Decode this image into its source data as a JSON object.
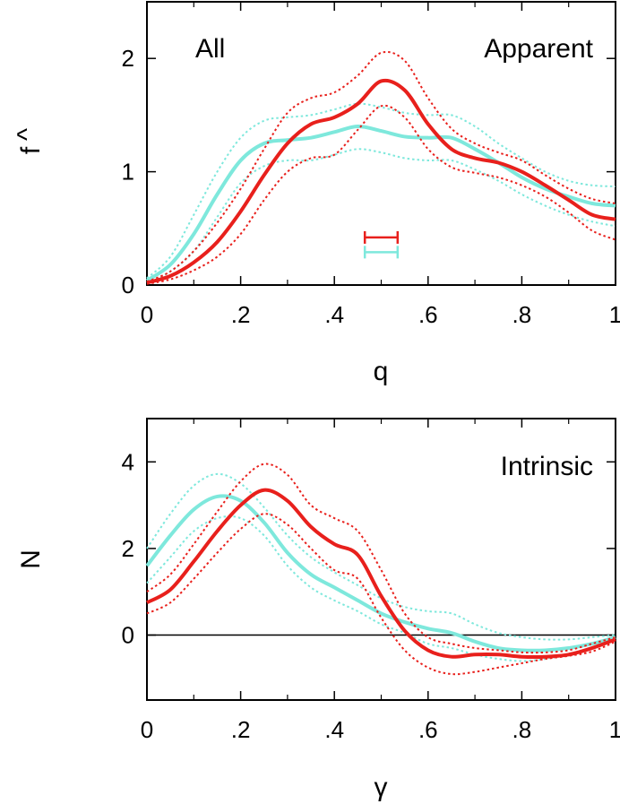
{
  "chart_data": [
    {
      "type": "line",
      "panel": "top",
      "xlabel": "q",
      "ylabel": "f",
      "ylabel_hat": "^",
      "xlim": [
        0,
        1
      ],
      "ylim": [
        0,
        2.5
      ],
      "yticks": [
        0,
        1,
        2
      ],
      "ytick_labels": [
        "0",
        "1",
        "2"
      ],
      "xticks": [
        0,
        0.2,
        0.4,
        0.6,
        0.8,
        1.0
      ],
      "xtick_labels": [
        "0",
        ".2",
        ".4",
        ".6",
        ".8",
        "1"
      ],
      "annotations": [
        {
          "text": "All",
          "position": "top-left"
        },
        {
          "text": "Apparent",
          "position": "top-right"
        }
      ],
      "error_bars": [
        {
          "color": "#e8201c",
          "x_from": 0.465,
          "x_to": 0.535,
          "y": 0.42
        },
        {
          "color": "#7ee8dc",
          "x_from": 0.465,
          "x_to": 0.535,
          "y": 0.29
        }
      ],
      "series": [
        {
          "name": "red-mean",
          "color": "#e8201c",
          "style": "solid",
          "x": [
            0,
            0.05,
            0.1,
            0.15,
            0.2,
            0.25,
            0.3,
            0.35,
            0.4,
            0.45,
            0.5,
            0.55,
            0.6,
            0.65,
            0.7,
            0.75,
            0.8,
            0.85,
            0.9,
            0.95,
            1.0
          ],
          "y": [
            0.02,
            0.08,
            0.2,
            0.38,
            0.65,
            0.97,
            1.25,
            1.42,
            1.48,
            1.6,
            1.8,
            1.72,
            1.42,
            1.2,
            1.12,
            1.08,
            1.0,
            0.88,
            0.75,
            0.62,
            0.58
          ]
        },
        {
          "name": "red-upper",
          "color": "#e8201c",
          "style": "dotted",
          "x": [
            0,
            0.05,
            0.1,
            0.15,
            0.2,
            0.25,
            0.3,
            0.35,
            0.4,
            0.45,
            0.5,
            0.55,
            0.6,
            0.65,
            0.7,
            0.75,
            0.8,
            0.85,
            0.9,
            0.95,
            1.0
          ],
          "y": [
            0.03,
            0.12,
            0.3,
            0.55,
            0.85,
            1.2,
            1.52,
            1.65,
            1.7,
            1.85,
            2.05,
            1.98,
            1.65,
            1.38,
            1.25,
            1.17,
            1.1,
            0.97,
            0.85,
            0.76,
            0.72
          ]
        },
        {
          "name": "red-lower",
          "color": "#e8201c",
          "style": "dotted",
          "x": [
            0,
            0.05,
            0.1,
            0.15,
            0.2,
            0.25,
            0.3,
            0.35,
            0.4,
            0.45,
            0.5,
            0.55,
            0.6,
            0.65,
            0.7,
            0.75,
            0.8,
            0.85,
            0.9,
            0.95,
            1.0
          ],
          "y": [
            0.01,
            0.05,
            0.13,
            0.25,
            0.45,
            0.75,
            1.0,
            1.12,
            1.15,
            1.37,
            1.58,
            1.48,
            1.2,
            1.04,
            0.99,
            0.95,
            0.88,
            0.78,
            0.64,
            0.48,
            0.4
          ]
        },
        {
          "name": "cyan-mean",
          "color": "#7ee8dc",
          "style": "solid",
          "x": [
            0,
            0.05,
            0.1,
            0.15,
            0.2,
            0.25,
            0.3,
            0.35,
            0.4,
            0.45,
            0.5,
            0.55,
            0.6,
            0.65,
            0.7,
            0.75,
            0.8,
            0.85,
            0.9,
            0.95,
            1.0
          ],
          "y": [
            0.04,
            0.18,
            0.45,
            0.8,
            1.1,
            1.25,
            1.28,
            1.3,
            1.35,
            1.4,
            1.36,
            1.31,
            1.3,
            1.3,
            1.2,
            1.08,
            0.95,
            0.85,
            0.78,
            0.72,
            0.7
          ]
        },
        {
          "name": "cyan-upper",
          "color": "#7ee8dc",
          "style": "dotted",
          "x": [
            0,
            0.05,
            0.1,
            0.15,
            0.2,
            0.25,
            0.3,
            0.35,
            0.4,
            0.45,
            0.5,
            0.55,
            0.6,
            0.65,
            0.7,
            0.75,
            0.8,
            0.85,
            0.9,
            0.95,
            1.0
          ],
          "y": [
            0.06,
            0.25,
            0.62,
            1.0,
            1.3,
            1.45,
            1.48,
            1.5,
            1.55,
            1.6,
            1.57,
            1.52,
            1.5,
            1.5,
            1.4,
            1.25,
            1.12,
            1.0,
            0.92,
            0.88,
            0.87
          ]
        },
        {
          "name": "cyan-lower",
          "color": "#7ee8dc",
          "style": "dotted",
          "x": [
            0,
            0.05,
            0.1,
            0.15,
            0.2,
            0.25,
            0.3,
            0.35,
            0.4,
            0.45,
            0.5,
            0.55,
            0.6,
            0.65,
            0.7,
            0.75,
            0.8,
            0.85,
            0.9,
            0.95,
            1.0
          ],
          "y": [
            0.02,
            0.12,
            0.3,
            0.6,
            0.9,
            1.05,
            1.1,
            1.1,
            1.15,
            1.2,
            1.17,
            1.12,
            1.1,
            1.1,
            1.02,
            0.92,
            0.8,
            0.7,
            0.62,
            0.56,
            0.52
          ]
        }
      ]
    },
    {
      "type": "line",
      "panel": "bottom",
      "xlabel": "γ",
      "ylabel": "N",
      "xlim": [
        0,
        1
      ],
      "ylim": [
        -1.5,
        5
      ],
      "yticks": [
        0,
        2,
        4
      ],
      "ytick_labels": [
        "0",
        "2",
        "4"
      ],
      "xticks": [
        0,
        0.2,
        0.4,
        0.6,
        0.8,
        1.0
      ],
      "xtick_labels": [
        "0",
        ".2",
        ".4",
        ".6",
        ".8",
        "1"
      ],
      "zero_line": true,
      "annotations": [
        {
          "text": "Intrinsic",
          "position": "top-right"
        }
      ],
      "series": [
        {
          "name": "red-mean",
          "color": "#e8201c",
          "style": "solid",
          "x": [
            0,
            0.05,
            0.1,
            0.15,
            0.2,
            0.25,
            0.3,
            0.35,
            0.4,
            0.45,
            0.5,
            0.55,
            0.6,
            0.65,
            0.7,
            0.75,
            0.8,
            0.85,
            0.9,
            0.95,
            1.0
          ],
          "y": [
            0.75,
            1.05,
            1.7,
            2.4,
            3.0,
            3.35,
            3.1,
            2.5,
            2.1,
            1.85,
            0.9,
            0.1,
            -0.35,
            -0.5,
            -0.45,
            -0.45,
            -0.5,
            -0.5,
            -0.45,
            -0.3,
            -0.1
          ]
        },
        {
          "name": "red-upper",
          "color": "#e8201c",
          "style": "dotted",
          "x": [
            0,
            0.05,
            0.1,
            0.15,
            0.2,
            0.25,
            0.3,
            0.35,
            0.4,
            0.45,
            0.5,
            0.55,
            0.6,
            0.65,
            0.7,
            0.75,
            0.8,
            0.85,
            0.9,
            0.95,
            1.0
          ],
          "y": [
            1.0,
            1.4,
            2.1,
            2.85,
            3.55,
            3.95,
            3.7,
            3.0,
            2.7,
            2.4,
            1.5,
            0.5,
            -0.05,
            -0.2,
            -0.3,
            -0.35,
            -0.4,
            -0.4,
            -0.35,
            -0.2,
            -0.05
          ]
        },
        {
          "name": "red-lower",
          "color": "#e8201c",
          "style": "dotted",
          "x": [
            0,
            0.05,
            0.1,
            0.15,
            0.2,
            0.25,
            0.3,
            0.35,
            0.4,
            0.45,
            0.5,
            0.55,
            0.6,
            0.65,
            0.7,
            0.75,
            0.8,
            0.85,
            0.9,
            0.95,
            1.0
          ],
          "y": [
            0.5,
            0.75,
            1.3,
            1.9,
            2.45,
            2.8,
            2.55,
            2.0,
            1.5,
            1.3,
            0.4,
            -0.35,
            -0.75,
            -0.9,
            -0.85,
            -0.75,
            -0.65,
            -0.55,
            -0.48,
            -0.38,
            -0.15
          ]
        },
        {
          "name": "cyan-mean",
          "color": "#7ee8dc",
          "style": "solid",
          "x": [
            0,
            0.05,
            0.1,
            0.15,
            0.2,
            0.25,
            0.3,
            0.35,
            0.4,
            0.45,
            0.5,
            0.55,
            0.6,
            0.65,
            0.7,
            0.75,
            0.8,
            0.85,
            0.9,
            0.95,
            1.0
          ],
          "y": [
            1.6,
            2.3,
            2.9,
            3.2,
            3.1,
            2.6,
            1.9,
            1.4,
            1.1,
            0.8,
            0.5,
            0.3,
            0.15,
            0.05,
            -0.15,
            -0.3,
            -0.35,
            -0.35,
            -0.3,
            -0.2,
            -0.05
          ]
        },
        {
          "name": "cyan-upper",
          "color": "#7ee8dc",
          "style": "dotted",
          "x": [
            0,
            0.05,
            0.1,
            0.15,
            0.2,
            0.25,
            0.3,
            0.35,
            0.4,
            0.45,
            0.5,
            0.55,
            0.6,
            0.65,
            0.7,
            0.75,
            0.8,
            0.85,
            0.9,
            0.95,
            1.0
          ],
          "y": [
            2.0,
            2.8,
            3.45,
            3.72,
            3.5,
            2.95,
            2.3,
            1.8,
            1.45,
            1.15,
            0.85,
            0.65,
            0.55,
            0.5,
            0.25,
            0.05,
            -0.05,
            -0.1,
            -0.1,
            -0.05,
            0.0
          ]
        },
        {
          "name": "cyan-lower",
          "color": "#7ee8dc",
          "style": "dotted",
          "x": [
            0,
            0.05,
            0.1,
            0.15,
            0.2,
            0.25,
            0.3,
            0.35,
            0.4,
            0.45,
            0.5,
            0.55,
            0.6,
            0.65,
            0.7,
            0.75,
            0.8,
            0.85,
            0.9,
            0.95,
            1.0
          ],
          "y": [
            1.2,
            1.8,
            2.4,
            2.7,
            2.7,
            2.3,
            1.6,
            1.1,
            0.8,
            0.55,
            0.25,
            0.05,
            -0.2,
            -0.3,
            -0.45,
            -0.55,
            -0.6,
            -0.55,
            -0.45,
            -0.3,
            -0.1
          ]
        }
      ]
    }
  ]
}
